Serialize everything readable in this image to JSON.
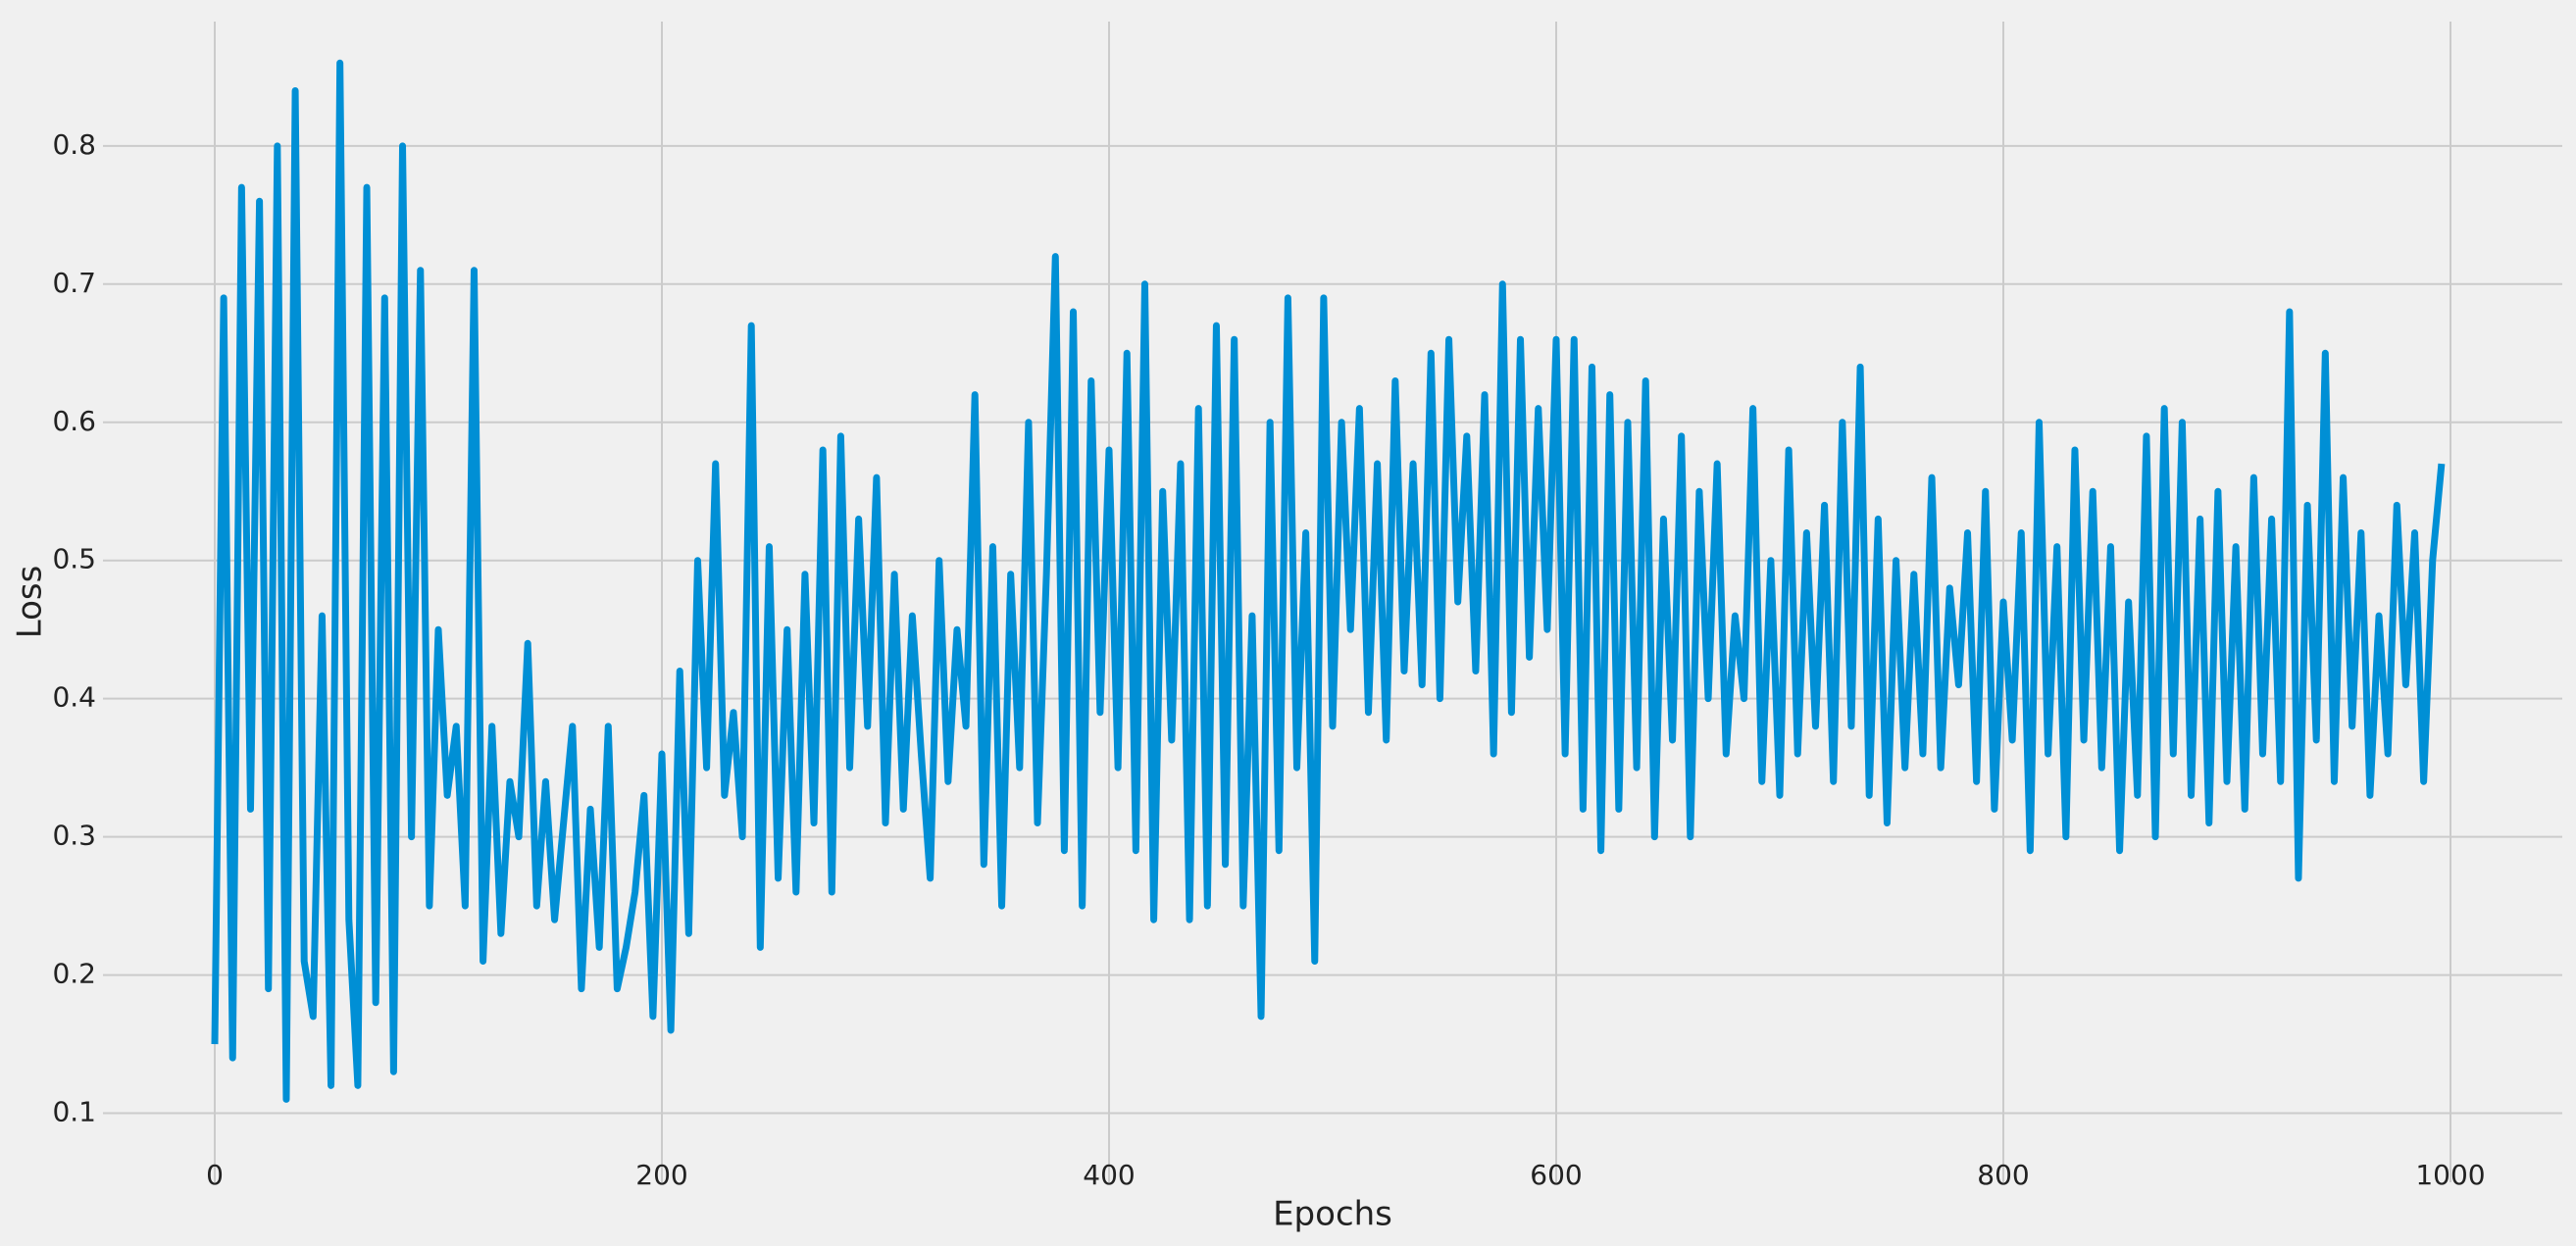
{
  "chart_data": {
    "type": "line",
    "xlabel": "Epochs",
    "ylabel": "Loss",
    "color": "#008fd5",
    "grid": true,
    "xlim": [
      -50,
      1050
    ],
    "ylim": [
      0.05,
      0.89
    ],
    "xticks": [
      0,
      200,
      400,
      600,
      800,
      1000
    ],
    "yticks": [
      0.1,
      0.2,
      0.3,
      0.4,
      0.5,
      0.6,
      0.7,
      0.8
    ],
    "x": [
      0,
      4,
      8,
      12,
      16,
      20,
      24,
      28,
      32,
      36,
      40,
      44,
      48,
      52,
      56,
      60,
      64,
      68,
      72,
      76,
      80,
      84,
      88,
      92,
      96,
      100,
      104,
      108,
      112,
      116,
      120,
      124,
      128,
      132,
      136,
      140,
      144,
      148,
      152,
      156,
      160,
      164,
      168,
      172,
      176,
      180,
      184,
      188,
      192,
      196,
      200,
      204,
      208,
      212,
      216,
      220,
      224,
      228,
      232,
      236,
      240,
      244,
      248,
      252,
      256,
      260,
      264,
      268,
      272,
      276,
      280,
      284,
      288,
      292,
      296,
      300,
      304,
      308,
      312,
      316,
      320,
      324,
      328,
      332,
      336,
      340,
      344,
      348,
      352,
      356,
      360,
      364,
      368,
      372,
      376,
      380,
      384,
      388,
      392,
      396,
      400,
      404,
      408,
      412,
      416,
      420,
      424,
      428,
      432,
      436,
      440,
      444,
      448,
      452,
      456,
      460,
      464,
      468,
      472,
      476,
      480,
      484,
      488,
      492,
      496,
      500,
      504,
      508,
      512,
      516,
      520,
      524,
      528,
      532,
      536,
      540,
      544,
      548,
      552,
      556,
      560,
      564,
      568,
      572,
      576,
      580,
      584,
      588,
      592,
      596,
      600,
      604,
      608,
      612,
      616,
      620,
      624,
      628,
      632,
      636,
      640,
      644,
      648,
      652,
      656,
      660,
      664,
      668,
      672,
      676,
      680,
      684,
      688,
      692,
      696,
      700,
      704,
      708,
      712,
      716,
      720,
      724,
      728,
      732,
      736,
      740,
      744,
      748,
      752,
      756,
      760,
      764,
      768,
      772,
      776,
      780,
      784,
      788,
      792,
      796,
      800,
      804,
      808,
      812,
      816,
      820,
      824,
      828,
      832,
      836,
      840,
      844,
      848,
      852,
      856,
      860,
      864,
      868,
      872,
      876,
      880,
      884,
      888,
      892,
      896,
      900,
      904,
      908,
      912,
      916,
      920,
      924,
      928,
      932,
      936,
      940,
      944,
      948,
      952,
      956,
      960,
      964,
      968,
      972,
      976,
      980,
      984,
      988,
      992,
      996
    ],
    "values": [
      0.15,
      0.69,
      0.14,
      0.77,
      0.32,
      0.76,
      0.19,
      0.8,
      0.11,
      0.84,
      0.21,
      0.17,
      0.46,
      0.12,
      0.86,
      0.24,
      0.12,
      0.77,
      0.18,
      0.69,
      0.13,
      0.8,
      0.3,
      0.71,
      0.25,
      0.45,
      0.33,
      0.38,
      0.25,
      0.71,
      0.21,
      0.38,
      0.23,
      0.34,
      0.3,
      0.44,
      0.25,
      0.34,
      0.24,
      0.31,
      0.38,
      0.19,
      0.32,
      0.22,
      0.38,
      0.19,
      0.22,
      0.26,
      0.33,
      0.17,
      0.36,
      0.16,
      0.42,
      0.23,
      0.5,
      0.35,
      0.57,
      0.33,
      0.39,
      0.3,
      0.67,
      0.22,
      0.51,
      0.27,
      0.45,
      0.26,
      0.49,
      0.31,
      0.58,
      0.26,
      0.59,
      0.35,
      0.53,
      0.38,
      0.56,
      0.31,
      0.49,
      0.32,
      0.46,
      0.36,
      0.27,
      0.5,
      0.34,
      0.45,
      0.38,
      0.62,
      0.28,
      0.51,
      0.25,
      0.49,
      0.35,
      0.6,
      0.31,
      0.49,
      0.72,
      0.29,
      0.68,
      0.25,
      0.63,
      0.39,
      0.58,
      0.35,
      0.65,
      0.29,
      0.7,
      0.24,
      0.55,
      0.37,
      0.57,
      0.24,
      0.61,
      0.25,
      0.67,
      0.28,
      0.66,
      0.25,
      0.46,
      0.17,
      0.6,
      0.29,
      0.69,
      0.35,
      0.52,
      0.21,
      0.69,
      0.38,
      0.6,
      0.45,
      0.61,
      0.39,
      0.57,
      0.37,
      0.63,
      0.42,
      0.57,
      0.41,
      0.65,
      0.4,
      0.66,
      0.47,
      0.59,
      0.42,
      0.62,
      0.36,
      0.7,
      0.39,
      0.66,
      0.43,
      0.61,
      0.45,
      0.66,
      0.36,
      0.66,
      0.32,
      0.64,
      0.29,
      0.62,
      0.32,
      0.6,
      0.35,
      0.63,
      0.3,
      0.53,
      0.37,
      0.59,
      0.3,
      0.55,
      0.4,
      0.57,
      0.36,
      0.46,
      0.4,
      0.61,
      0.34,
      0.5,
      0.33,
      0.58,
      0.36,
      0.52,
      0.38,
      0.54,
      0.34,
      0.6,
      0.38,
      0.64,
      0.33,
      0.53,
      0.31,
      0.5,
      0.35,
      0.49,
      0.36,
      0.56,
      0.35,
      0.48,
      0.41,
      0.52,
      0.34,
      0.55,
      0.32,
      0.47,
      0.37,
      0.52,
      0.29,
      0.6,
      0.36,
      0.51,
      0.3,
      0.58,
      0.37,
      0.55,
      0.35,
      0.51,
      0.29,
      0.47,
      0.33,
      0.59,
      0.3,
      0.61,
      0.36,
      0.6,
      0.33,
      0.53,
      0.31,
      0.55,
      0.34,
      0.51,
      0.32,
      0.56,
      0.36,
      0.53,
      0.34,
      0.68,
      0.27,
      0.54,
      0.37,
      0.65,
      0.34,
      0.56,
      0.38,
      0.52,
      0.33,
      0.46,
      0.36,
      0.54,
      0.41,
      0.52,
      0.34,
      0.5,
      0.57
    ]
  }
}
